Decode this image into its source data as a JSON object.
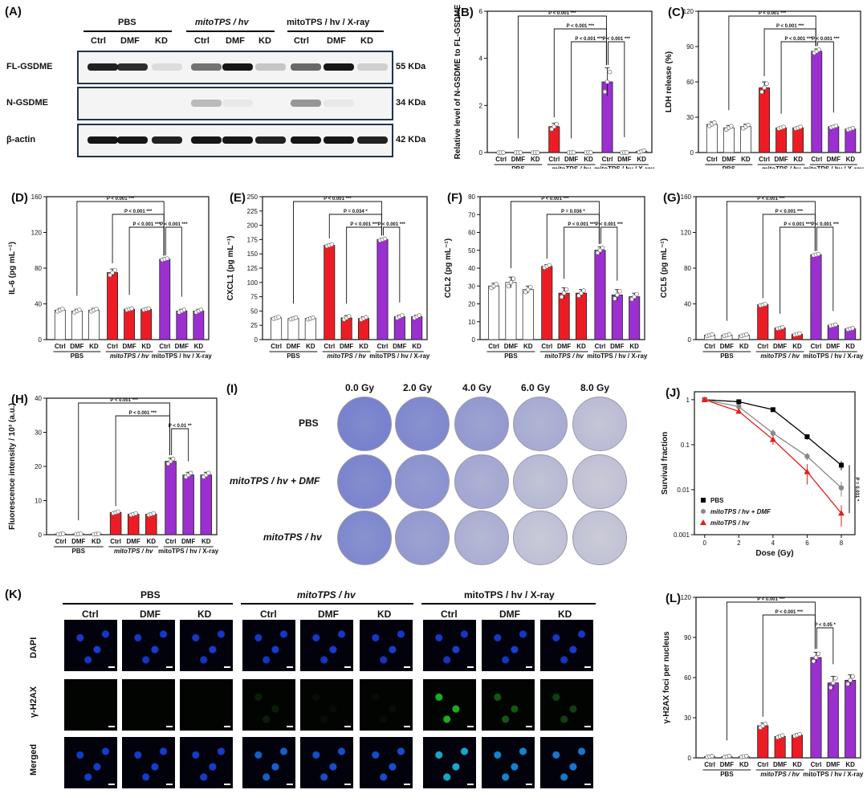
{
  "panels": {
    "A": {
      "label": "(A)",
      "groups": [
        "PBS",
        "mitoTPS / hv",
        "mitoTPS / hv / X-ray"
      ],
      "lanes": [
        "Ctrl",
        "DMF",
        "KD",
        "Ctrl",
        "DMF",
        "KD",
        "Ctrl",
        "DMF",
        "KD"
      ],
      "rows": [
        {
          "name": "FL-GSDME",
          "kda": "55 KDa",
          "intensity": [
            0.9,
            0.85,
            0.1,
            0.55,
            0.95,
            0.2,
            0.6,
            0.95,
            0.15
          ]
        },
        {
          "name": "N-GSDME",
          "kda": "34 KDa",
          "intensity": [
            0,
            0,
            0,
            0.25,
            0.05,
            0,
            0.4,
            0.05,
            0
          ]
        },
        {
          "name": "β-actin",
          "kda": "42 KDa",
          "intensity": [
            0.95,
            0.95,
            0.9,
            0.95,
            0.95,
            0.9,
            0.95,
            0.95,
            0.9
          ]
        }
      ]
    },
    "I": {
      "label": "(I)",
      "doses": [
        "0.0 Gy",
        "2.0 Gy",
        "4.0 Gy",
        "6.0 Gy",
        "8.0 Gy"
      ],
      "rows": [
        "PBS",
        "mitoTPS  / hv + DMF",
        "mitoTPS / hv"
      ],
      "density": [
        [
          0.95,
          0.85,
          0.6,
          0.35,
          0.1
        ],
        [
          0.9,
          0.7,
          0.4,
          0.15,
          0.04
        ],
        [
          0.85,
          0.6,
          0.3,
          0.05,
          0.02
        ]
      ]
    },
    "K": {
      "label": "(K)",
      "groups": [
        "PBS",
        "mitoTPS / hv",
        "mitoTPS / hv / X-ray"
      ],
      "columns": [
        "Ctrl",
        "DMF",
        "KD",
        "Ctrl",
        "DMF",
        "KD",
        "Ctrl",
        "DMF",
        "KD"
      ],
      "rows": [
        "DAPI",
        "γ-H2AX",
        "Merged"
      ],
      "h2ax_level": [
        0,
        0,
        0,
        0.3,
        0.15,
        0.15,
        0.9,
        0.6,
        0.5
      ]
    }
  },
  "chart_data": [
    {
      "id": "B",
      "type": "bar",
      "label": "(B)",
      "ylabel": "Relative level of N-GSDME to FL-GSDME",
      "ylim": [
        0,
        6
      ],
      "yticks": [
        "0",
        "2",
        "4",
        "6"
      ],
      "categories": [
        "Ctrl",
        "DMF",
        "KD",
        "Ctrl",
        "DMF",
        "KD",
        "Ctrl",
        "DMF",
        "KD"
      ],
      "groups": [
        "PBS",
        "mitoTPS / hv",
        "mitoTPS / hv / X-ray"
      ],
      "values": [
        0,
        0,
        0,
        1.1,
        0,
        0,
        3.0,
        0,
        0.05
      ],
      "errors": [
        0,
        0,
        0,
        0.15,
        0,
        0,
        0.6,
        0,
        0.05
      ],
      "annotations": [
        "P < 0.001 ***",
        "P < 0.001 ***",
        "P < 0.001 ***",
        "P < 0.001 ***"
      ]
    },
    {
      "id": "C",
      "type": "bar",
      "label": "(C)",
      "ylabel": "LDH release (%)",
      "ylim": [
        0,
        120
      ],
      "yticks": [
        "0",
        "30",
        "60",
        "90",
        "120"
      ],
      "categories": [
        "Ctrl",
        "DMF",
        "KD",
        "Ctrl",
        "DMF",
        "KD",
        "Ctrl",
        "DMF",
        "KD"
      ],
      "groups": [
        "PBS",
        "mitoTPS / hv",
        "mitoTPS / hv / X-ray"
      ],
      "values": [
        24,
        21,
        22,
        55,
        21,
        21,
        86,
        22,
        20
      ],
      "errors": [
        2,
        2,
        2,
        5,
        1,
        1,
        2,
        1,
        1
      ],
      "annotations": [
        "P < 0.001 ***",
        "P < 0.001 ***",
        "P < 0.001 ***",
        "P < 0.001 ***"
      ]
    },
    {
      "id": "D",
      "type": "bar",
      "label": "(D)",
      "ylabel": "IL-6 (pg mL⁻¹)",
      "ylim": [
        0,
        160
      ],
      "yticks": [
        "0",
        "40",
        "80",
        "120",
        "160"
      ],
      "categories": [
        "Ctrl",
        "DMF",
        "KD",
        "Ctrl",
        "DMF",
        "KD",
        "Ctrl",
        "DMF",
        "KD"
      ],
      "groups": [
        "PBS",
        "mitoTPS / hv",
        "mitoTPS / hv / X-ray"
      ],
      "values": [
        33,
        32,
        33,
        75,
        34,
        34,
        90,
        32,
        32
      ],
      "errors": [
        2,
        2,
        2,
        4,
        1,
        1,
        1,
        2,
        2
      ],
      "annotations": [
        "P < 0.001 ***",
        "P < 0.001 ***",
        "P < 0.001 ***",
        "P < 0.001 ***"
      ]
    },
    {
      "id": "E",
      "type": "bar",
      "label": "(E)",
      "ylabel": "CXCL1 (pg mL⁻¹)",
      "ylim": [
        0,
        250
      ],
      "yticks": [
        "0",
        "25",
        "50",
        "75",
        "100",
        "125",
        "150",
        "175",
        "200",
        "225",
        "250"
      ],
      "categories": [
        "Ctrl",
        "DMF",
        "KD",
        "Ctrl",
        "DMF",
        "KD",
        "Ctrl",
        "DMF",
        "KD"
      ],
      "groups": [
        "PBS",
        "mitoTPS / hv",
        "mitoTPS / hv / X-ray"
      ],
      "values": [
        38,
        37,
        37,
        165,
        38,
        37,
        175,
        40,
        40
      ],
      "errors": [
        2,
        2,
        2,
        2,
        4,
        3,
        2,
        3,
        3
      ],
      "annotations": [
        "P < 0.001 ***",
        "P = 0.034 *",
        "P < 0.001 ***",
        "P < 0.001 ***"
      ]
    },
    {
      "id": "F",
      "type": "bar",
      "label": "(F)",
      "ylabel": "CCL2 (pg mL⁻¹)",
      "ylim": [
        0,
        80
      ],
      "yticks": [
        "0",
        "10",
        "20",
        "30",
        "40",
        "50",
        "60",
        "70",
        "80"
      ],
      "categories": [
        "Ctrl",
        "DMF",
        "KD",
        "Ctrl",
        "DMF",
        "KD",
        "Ctrl",
        "DMF",
        "KD"
      ],
      "groups": [
        "PBS",
        "mitoTPS / hv",
        "mitoTPS / hv / X-ray"
      ],
      "values": [
        30,
        32,
        28,
        41,
        26,
        26,
        50,
        25,
        24
      ],
      "errors": [
        1.5,
        3,
        2,
        1,
        3,
        2,
        2,
        3,
        2
      ],
      "annotations": [
        "P < 0.001 ***",
        "P = 0.036 *",
        "P < 0.001 ***",
        "P < 0.001 ***"
      ]
    },
    {
      "id": "G",
      "type": "bar",
      "label": "(G)",
      "ylabel": "CCL5 (pg mL⁻¹)",
      "ylim": [
        0,
        160
      ],
      "yticks": [
        "0",
        "40",
        "80",
        "120",
        "160"
      ],
      "categories": [
        "Ctrl",
        "DMF",
        "KD",
        "Ctrl",
        "DMF",
        "KD",
        "Ctrl",
        "DMF",
        "KD"
      ],
      "groups": [
        "PBS",
        "mitoTPS / hv",
        "mitoTPS / hv / X-ray"
      ],
      "values": [
        5,
        5,
        5,
        39,
        13,
        6,
        95,
        16,
        12
      ],
      "errors": [
        1,
        1,
        1,
        1,
        1,
        1,
        1,
        1,
        1
      ],
      "annotations": [
        "P < 0.001 ***",
        "P < 0.001 ***",
        "P < 0.001 ***",
        "P < 0.001 ***"
      ]
    },
    {
      "id": "H",
      "type": "bar",
      "label": "(H)",
      "ylabel": "Fluorescence intensity / 10³ (a.u.)",
      "ylim": [
        0,
        40
      ],
      "yticks": [
        "0",
        "10",
        "20",
        "30",
        "40"
      ],
      "categories": [
        "Ctrl",
        "DMF",
        "KD",
        "Ctrl",
        "DMF",
        "KD",
        "Ctrl",
        "DMF",
        "KD"
      ],
      "groups": [
        "PBS",
        "mitoTPS / hv",
        "mitoTPS / hv / X-ray"
      ],
      "values": [
        0.2,
        0.2,
        0.2,
        6.5,
        6,
        6,
        21.5,
        17.5,
        17.5
      ],
      "errors": [
        0.1,
        0.1,
        0.1,
        0.3,
        0.3,
        0.3,
        1,
        0.8,
        0.8
      ],
      "annotations": [
        "P < 0.001 ***",
        "P < 0.001 ***",
        "P < 0.01 **"
      ]
    },
    {
      "id": "J",
      "type": "scatter",
      "label": "(J)",
      "ylabel": "Survival fraction",
      "xlabel": "Dose (Gy)",
      "xticks": [
        "0",
        "2",
        "4",
        "6",
        "8"
      ],
      "yticks": [
        "1",
        "0.1",
        "0.01",
        "0.001"
      ],
      "xlim": [
        -0.6,
        8.8
      ],
      "ylim": [
        0.001,
        1.5
      ],
      "yscale": "log",
      "legend_position": "bottom-left",
      "x": [
        0,
        2,
        4,
        6,
        8
      ],
      "series": [
        {
          "name": "PBS",
          "values": [
            1,
            0.9,
            0.6,
            0.15,
            0.035
          ],
          "errors": [
            0,
            0.05,
            0.05,
            0.02,
            0.008
          ],
          "color": "#000000",
          "marker": "square"
        },
        {
          "name": "mitoTPS / hv + DMF",
          "values": [
            1,
            0.7,
            0.18,
            0.055,
            0.011
          ],
          "errors": [
            0,
            0.05,
            0.04,
            0.01,
            0.004
          ],
          "color": "#888888",
          "marker": "circle"
        },
        {
          "name": "mitoTPS / hv",
          "values": [
            1,
            0.55,
            0.13,
            0.025,
            0.003
          ],
          "errors": [
            0,
            0.05,
            0.03,
            0.012,
            0.0015
          ],
          "color": "#e0201c",
          "marker": "triangle"
        }
      ],
      "annotation": "P = 0.031 *"
    },
    {
      "id": "L",
      "type": "bar",
      "label": "(L)",
      "ylabel": "γ-H2AX foci per nucleus",
      "ylim": [
        0,
        120
      ],
      "yticks": [
        "0",
        "30",
        "60",
        "90",
        "120"
      ],
      "categories": [
        "Ctrl",
        "DMF",
        "KD",
        "Ctrl",
        "DMF",
        "KD",
        "Ctrl",
        "DMF",
        "KD"
      ],
      "groups": [
        "PBS",
        "mitoTPS / hv",
        "mitoTPS / hv / X-ray"
      ],
      "values": [
        1,
        1,
        1,
        24,
        16,
        17,
        75,
        56,
        58
      ],
      "errors": [
        0.5,
        0.5,
        0.5,
        2,
        1,
        1,
        4,
        5,
        4
      ],
      "annotations": [
        "P < 0.001 ***",
        "P < 0.001 ***",
        "P < 0.05 *"
      ]
    }
  ],
  "colors": {
    "pbs": "#ffffff",
    "mito": "#ed1c24",
    "xray": "#9b2fd0"
  }
}
